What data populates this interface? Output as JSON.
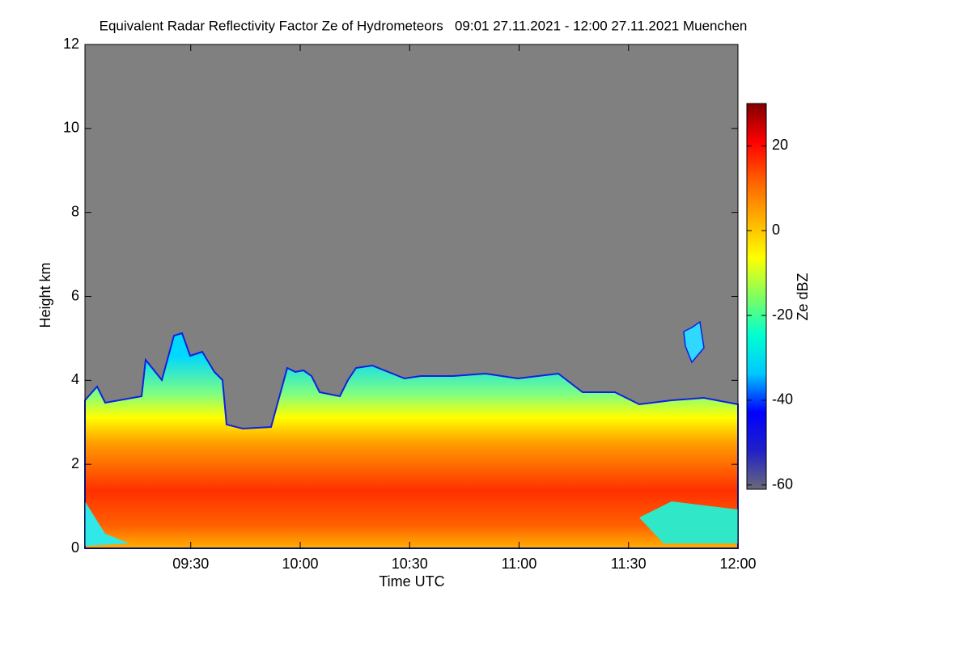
{
  "chart_data": {
    "type": "heatmap",
    "title": "Equivalent Radar Reflectivity Factor Ze of Hydrometeors   09:01 27.11.2021 - 12:00 27.11.2021 Muenchen",
    "x_label": "Time UTC",
    "y_label": "Height km",
    "xlim": [
      541,
      720
    ],
    "xticks": [
      {
        "value": 570,
        "label": "09:30"
      },
      {
        "value": 600,
        "label": "10:00"
      },
      {
        "value": 630,
        "label": "10:30"
      },
      {
        "value": 660,
        "label": "11:00"
      },
      {
        "value": 690,
        "label": "11:30"
      },
      {
        "value": 720,
        "label": "12:00"
      }
    ],
    "ylim": [
      0,
      12
    ],
    "yticks": [
      0,
      2,
      4,
      6,
      8,
      10,
      12
    ],
    "background": "#808080",
    "colorbar": {
      "label": "Ze dBZ",
      "zlim": [
        -61,
        30
      ],
      "ticks": [
        -60,
        -40,
        -20,
        0,
        20
      ],
      "colors": [
        "#6a6a78",
        "#2020c8",
        "#0000ff",
        "#00c8ff",
        "#00ffd0",
        "#80ff60",
        "#ffff00",
        "#ffb000",
        "#ff6000",
        "#ff0000",
        "#800000"
      ]
    }
  }
}
